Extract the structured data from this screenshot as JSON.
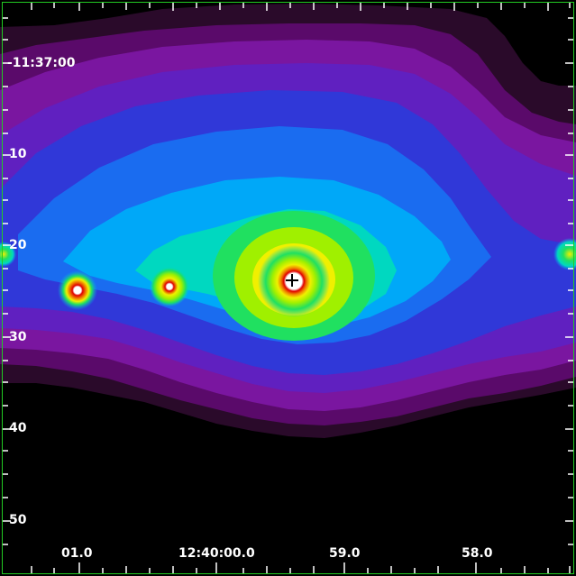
{
  "image": {
    "kind": "false-color astronomical image",
    "colormap": [
      "#000000",
      "#2a0a2a",
      "#5a0a6a",
      "#7a16a0",
      "#6020c0",
      "#3038d8",
      "#1a6cf0",
      "#00a8f8",
      "#00d8c0",
      "#20e060",
      "#a0f000",
      "#f0f000",
      "#f08000",
      "#e00000",
      "#ffffff"
    ],
    "frame_color": "#22cc22",
    "marker": "plus"
  },
  "axes": {
    "dec_labels": [
      "-11:37:00",
      "10",
      "20",
      "30",
      "40",
      "50"
    ],
    "ra_labels": [
      "01.0",
      "12:40:00.0",
      "59.0",
      "58.0"
    ]
  }
}
